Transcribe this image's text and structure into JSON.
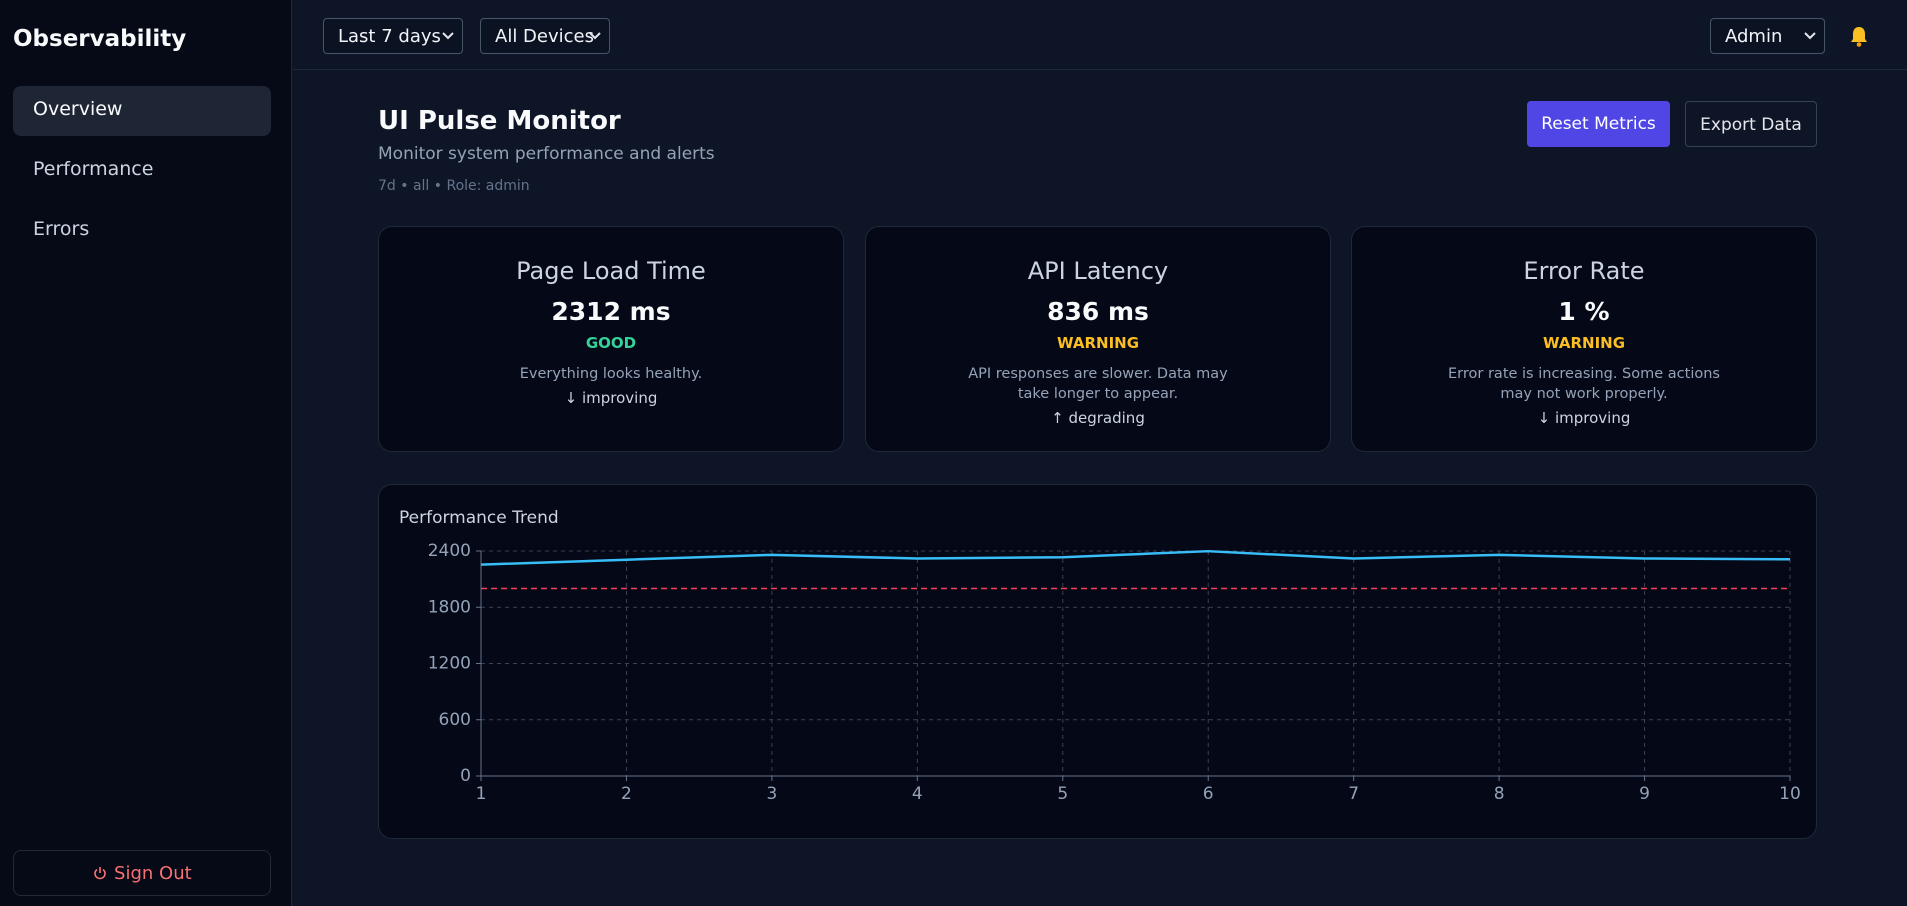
{
  "sidebar": {
    "brand": "Observability",
    "nav": [
      "Overview",
      "Performance",
      "Errors"
    ],
    "sign_out": "Sign Out"
  },
  "topbar": {
    "filters": [
      "Last 7 days",
      "All Devices"
    ],
    "user": "Admin"
  },
  "header": {
    "title": "UI Pulse Monitor",
    "subtitle": "Monitor system performance and alerts",
    "meta": "7d • all • Role: admin",
    "actions": [
      "Reset Metrics",
      "Export Data"
    ]
  },
  "cards": [
    {
      "title": "Page Load Time",
      "value": "2312 ms",
      "status": "GOOD",
      "status_color": "#34d399",
      "message": "Everything looks healthy.",
      "trend": "↓ improving"
    },
    {
      "title": "API Latency",
      "value": "836 ms",
      "status": "WARNING",
      "status_color": "#fbbf24",
      "message": "API responses are slower. Data may take longer to appear.",
      "trend": "↑ degrading"
    },
    {
      "title": "Error Rate",
      "value": "1 %",
      "status": "WARNING",
      "status_color": "#fbbf24",
      "message": "Error rate is increasing. Some actions may not work properly.",
      "trend": "↓ improving"
    }
  ],
  "chart_data": {
    "type": "line",
    "title": "Performance Trend",
    "x": [
      1,
      2,
      3,
      4,
      5,
      6,
      7,
      8,
      9,
      10
    ],
    "values": [
      2255,
      2307,
      2359,
      2320,
      2333,
      2398,
      2320,
      2359,
      2320,
      2312
    ],
    "color": "#38bdf8",
    "threshold": 2000,
    "threshold_color": "#f43f5e",
    "xlim": [
      1,
      10
    ],
    "xticks": [
      1,
      2,
      3,
      4,
      5,
      6,
      7,
      8,
      9,
      10
    ],
    "ylim": [
      0,
      2400
    ],
    "yticks": [
      0,
      600,
      1200,
      1800,
      2400
    ],
    "grid": true
  }
}
